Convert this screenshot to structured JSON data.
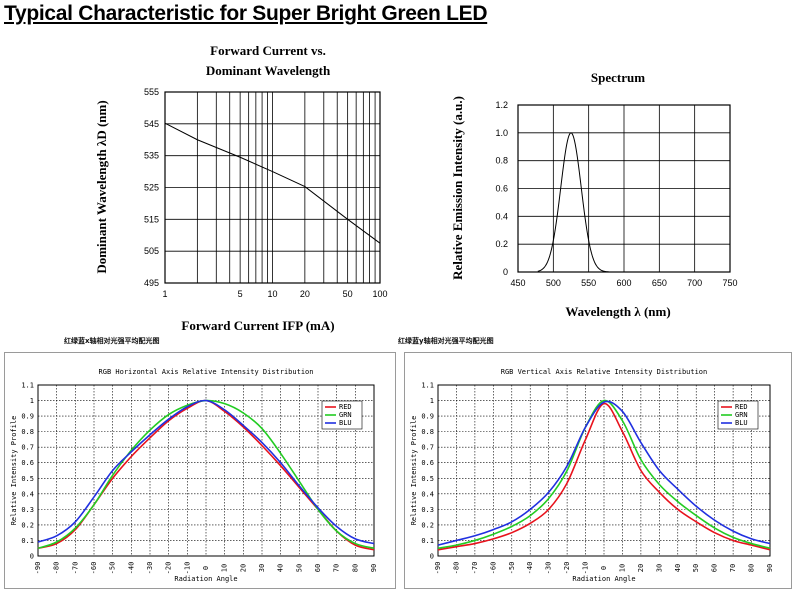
{
  "page_title": "Typical Characteristic for Super Bright Green LED",
  "captions": [
    "红绿蓝x轴相对光强平均配光图",
    "红绿蓝y轴相对光强平均配光图"
  ],
  "colors": {
    "red": "#e8121c",
    "green": "#22cc22",
    "blue": "#2030e0"
  },
  "chart_data": [
    {
      "type": "line",
      "title_lines": [
        "Forward Current vs.",
        "Dominant Wavelength"
      ],
      "xlabel": "Forward Current IFP (mA)",
      "ylabel": "Dominant Wavelength λD (nm)",
      "x_scale": "log",
      "xlim": [
        1,
        100
      ],
      "ylim": [
        495,
        555
      ],
      "xticks": [
        1,
        5,
        10,
        20,
        50,
        100
      ],
      "yticks": [
        495,
        505,
        515,
        525,
        535,
        545,
        555
      ],
      "x": [
        1,
        2,
        5,
        10,
        20,
        50,
        100
      ],
      "y": [
        545.2,
        540,
        534.5,
        530,
        525.3,
        515,
        507.5
      ]
    },
    {
      "type": "line",
      "title": "Spectrum",
      "xlabel": "Wavelength λ (nm)",
      "ylabel": "Relative Emission Intensity (a.u.)",
      "xlim": [
        450,
        750
      ],
      "ylim": [
        0,
        1.2
      ],
      "xticks": [
        450,
        500,
        550,
        600,
        650,
        700,
        750
      ],
      "yticks": [
        0,
        0.2,
        0.4,
        0.6,
        0.8,
        1.0,
        1.2
      ],
      "ytick_labels": [
        "0",
        "0.2",
        "0.4",
        "0.6",
        "0.8",
        "1.0",
        "1.2"
      ],
      "peak": 525,
      "width_sigma": 14.5
    },
    {
      "type": "line",
      "title": "RGB Horizontal Axis Relative Intensity Distribution",
      "xlabel": "Radiation Angle",
      "ylabel": "Relative Intensity Profile",
      "xlim": [
        -90,
        90
      ],
      "ylim": [
        0,
        1.1
      ],
      "xticks": [
        -90,
        -80,
        -70,
        -60,
        -50,
        -40,
        -30,
        -20,
        -10,
        0,
        10,
        20,
        30,
        40,
        50,
        60,
        70,
        80,
        90
      ],
      "yticks": [
        0,
        0.1,
        0.2,
        0.3,
        0.4,
        0.5,
        0.6,
        0.7,
        0.8,
        0.9,
        1,
        1.1
      ],
      "ytick_labels": [
        "0",
        "0.1",
        "0.2",
        "0.3",
        "0.4",
        "0.5",
        "0.6",
        "0.7",
        "0.8",
        "0.9",
        "1",
        "1.1"
      ],
      "legend_placement": "top-right",
      "legend_labels": [
        "RED",
        "GRN",
        "BLU"
      ],
      "x": [
        -90,
        -80,
        -70,
        -60,
        -50,
        -40,
        -30,
        -20,
        -10,
        0,
        10,
        20,
        30,
        40,
        50,
        60,
        70,
        80,
        90
      ],
      "series": [
        {
          "color_key": "red",
          "values": [
            0.05,
            0.08,
            0.17,
            0.33,
            0.5,
            0.64,
            0.76,
            0.87,
            0.95,
            1.0,
            0.93,
            0.83,
            0.71,
            0.58,
            0.44,
            0.3,
            0.16,
            0.07,
            0.04
          ]
        },
        {
          "color_key": "green",
          "values": [
            0.05,
            0.09,
            0.18,
            0.33,
            0.52,
            0.68,
            0.81,
            0.91,
            0.97,
            1.0,
            0.98,
            0.92,
            0.82,
            0.66,
            0.48,
            0.3,
            0.16,
            0.08,
            0.05
          ]
        },
        {
          "color_key": "blue",
          "values": [
            0.09,
            0.13,
            0.22,
            0.38,
            0.55,
            0.67,
            0.78,
            0.88,
            0.96,
            1.0,
            0.94,
            0.84,
            0.73,
            0.6,
            0.45,
            0.31,
            0.19,
            0.11,
            0.08
          ]
        }
      ]
    },
    {
      "type": "line",
      "title": "RGB Vertical Axis Relative Intensity Distribution",
      "xlabel": "Radiation Angle",
      "ylabel": "Relative Intensity Profile",
      "xlim": [
        -90,
        90
      ],
      "ylim": [
        0,
        1.1
      ],
      "xticks": [
        -90,
        -80,
        -70,
        -60,
        -50,
        -40,
        -30,
        -20,
        -10,
        0,
        10,
        20,
        30,
        40,
        50,
        60,
        70,
        80,
        90
      ],
      "yticks": [
        0,
        0.1,
        0.2,
        0.3,
        0.4,
        0.5,
        0.6,
        0.7,
        0.8,
        0.9,
        1,
        1.1
      ],
      "ytick_labels": [
        "0",
        "0.1",
        "0.2",
        "0.3",
        "0.4",
        "0.5",
        "0.6",
        "0.7",
        "0.8",
        "0.9",
        "1",
        "1.1"
      ],
      "legend_placement": "top-right",
      "legend_labels": [
        "RED",
        "GRN",
        "BLU"
      ],
      "x": [
        -90,
        -80,
        -70,
        -60,
        -50,
        -40,
        -30,
        -20,
        -10,
        0,
        10,
        20,
        30,
        40,
        50,
        60,
        70,
        80,
        90
      ],
      "series": [
        {
          "color_key": "red",
          "values": [
            0.04,
            0.06,
            0.08,
            0.11,
            0.15,
            0.21,
            0.3,
            0.47,
            0.75,
            0.98,
            0.8,
            0.55,
            0.41,
            0.3,
            0.22,
            0.15,
            0.1,
            0.07,
            0.04
          ]
        },
        {
          "color_key": "green",
          "values": [
            0.05,
            0.07,
            0.1,
            0.14,
            0.19,
            0.26,
            0.37,
            0.55,
            0.83,
            1.0,
            0.87,
            0.62,
            0.46,
            0.35,
            0.26,
            0.18,
            0.12,
            0.08,
            0.05
          ]
        },
        {
          "color_key": "blue",
          "values": [
            0.07,
            0.1,
            0.13,
            0.17,
            0.22,
            0.3,
            0.41,
            0.58,
            0.83,
            0.99,
            0.93,
            0.73,
            0.55,
            0.43,
            0.32,
            0.23,
            0.16,
            0.11,
            0.08
          ]
        }
      ]
    }
  ]
}
